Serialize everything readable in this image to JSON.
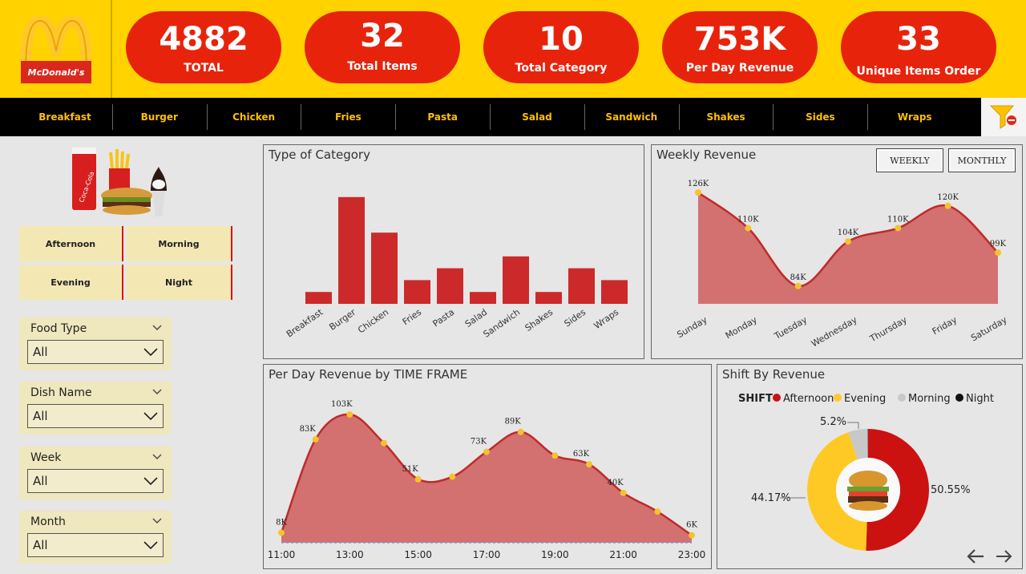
{
  "brand": {
    "name": "McDonald's",
    "accent": "#e8230c",
    "yellow": "#ffd200"
  },
  "kpis": [
    {
      "value": "4882",
      "label": "TOTAL"
    },
    {
      "value": "32",
      "label": "Total Items"
    },
    {
      "value": "10",
      "label": "Total Category"
    },
    {
      "value": "753K",
      "label": "Per Day Revenue"
    },
    {
      "value": "33",
      "label": "Unique Items Order"
    }
  ],
  "categories_nav": [
    "Breakfast",
    "Burger",
    "Chicken",
    "Fries",
    "Pasta",
    "Salad",
    "Sandwich",
    "Shakes",
    "Sides",
    "Wraps"
  ],
  "shift_buttons": [
    "Afternoon",
    "Morning",
    "Evening",
    "Night"
  ],
  "slicers": [
    {
      "title": "Food Type",
      "value": "All"
    },
    {
      "title": "Dish Name",
      "value": "All"
    },
    {
      "title": "Week",
      "value": "All"
    },
    {
      "title": "Month",
      "value": "All"
    }
  ],
  "panels": {
    "category_title": "Type of Category",
    "weekly_title": "Weekly Revenue",
    "weekly_btn": "WEEKLY",
    "monthly_btn": "MONTHLY",
    "timeframe_title": "Per Day Revenue by TIME FRAME",
    "shift_title": "Shift By Revenue"
  },
  "chart_data": [
    {
      "type": "bar",
      "title": "Type of Category",
      "categories": [
        "Breakfast",
        "Burger",
        "Chicken",
        "Fries",
        "Pasta",
        "Salad",
        "Sandwich",
        "Shakes",
        "Sides",
        "Wraps"
      ],
      "values": [
        10,
        90,
        60,
        20,
        30,
        10,
        40,
        10,
        30,
        20
      ],
      "ylim": [
        0,
        100
      ]
    },
    {
      "type": "area",
      "title": "Weekly Revenue",
      "categories": [
        "Sunday",
        "Monday",
        "Tuesday",
        "Wednesday",
        "Thursday",
        "Friday",
        "Saturday"
      ],
      "values": [
        126,
        110,
        84,
        104,
        110,
        120,
        99
      ],
      "labels": [
        "126K",
        "110K",
        "84K",
        "104K",
        "110K",
        "120K",
        "99K"
      ],
      "ylim": [
        76,
        130
      ]
    },
    {
      "type": "area",
      "title": "Per Day Revenue by TIME FRAME",
      "x": [
        "11:00",
        "12:00",
        "13:00",
        "14:00",
        "15:00",
        "16:00",
        "17:00",
        "18:00",
        "19:00",
        "20:00",
        "21:00",
        "22:00",
        "23:00"
      ],
      "xtick_labels": [
        "11:00",
        "13:00",
        "15:00",
        "17:00",
        "19:00",
        "21:00",
        "23:00"
      ],
      "values": [
        8,
        83,
        103,
        80,
        51,
        53,
        73,
        89,
        70,
        63,
        40,
        25,
        6
      ],
      "point_labels": [
        "8K",
        "83K",
        "103K",
        "",
        "51K",
        "",
        "73K",
        "89K",
        "",
        "63K",
        "40K",
        "",
        "6K"
      ],
      "ylim": [
        0,
        112
      ]
    },
    {
      "type": "pie",
      "title": "Shift By Revenue",
      "legend_title": "SHIFT",
      "slices": [
        {
          "name": "Afternoon",
          "value": 50.55,
          "label": "50.55%",
          "color": "#cc1111"
        },
        {
          "name": "Evening",
          "value": 44.17,
          "label": "44.17%",
          "color": "#ffc925"
        },
        {
          "name": "Morning",
          "value": 5.2,
          "label": "5.2%",
          "color": "#c8c8c8"
        },
        {
          "name": "Night",
          "value": 0.08,
          "label": "",
          "color": "#111111"
        }
      ]
    }
  ]
}
